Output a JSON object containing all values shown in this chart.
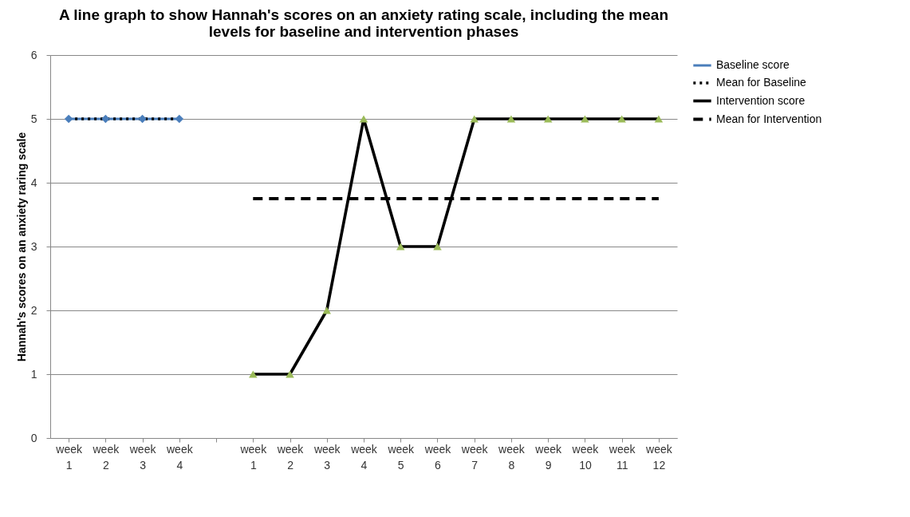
{
  "chart_data": {
    "type": "line",
    "title": "A line graph to show Hannah's scores on an anxiety rating scale, including the mean levels for baseline and intervention phases",
    "ylabel": "Hannah's scores on an anxiety raring scale",
    "categories": [
      "week 1",
      "week 2",
      "week 3",
      "week 4",
      null,
      "week 1",
      "week 2",
      "week 3",
      "week 4",
      "week 5",
      "week 6",
      "week 7",
      "week 8",
      "week 9",
      "week 10",
      "week 11",
      "week 12"
    ],
    "ylim": [
      0,
      6
    ],
    "yticks": [
      0,
      1,
      2,
      3,
      4,
      5,
      6
    ],
    "grid": "y",
    "legend": "right",
    "series": [
      {
        "name": "Baseline score",
        "color": "#4a7ebb",
        "marker": "diamond",
        "line_style": "solid",
        "values": [
          5,
          5,
          5,
          5,
          null,
          null,
          null,
          null,
          null,
          null,
          null,
          null,
          null,
          null,
          null,
          null,
          null
        ]
      },
      {
        "name": "Mean for Baseline",
        "color": "#000000",
        "marker": "none",
        "line_style": "dotted",
        "values": [
          5,
          5,
          5,
          5,
          null,
          null,
          null,
          null,
          null,
          null,
          null,
          null,
          null,
          null,
          null,
          null,
          null
        ]
      },
      {
        "name": "Intervention score",
        "color": "#000000",
        "colors": [
          null,
          null,
          null,
          null,
          null,
          "#9bbb59",
          "#9bbb59",
          "#9bbb59",
          "#9bbb59",
          "#9bbb59",
          "#9bbb59",
          "#9bbb59",
          "#9bbb59",
          "#9bbb59",
          "#9bbb59",
          "#9bbb59",
          "#9bbb59"
        ],
        "marker": "triangle",
        "line_style": "solid",
        "values": [
          null,
          null,
          null,
          null,
          null,
          1,
          1,
          2,
          5,
          3,
          3,
          5,
          5,
          5,
          5,
          5,
          5
        ]
      },
      {
        "name": "Mean for Intervention",
        "color": "#000000",
        "marker": "none",
        "line_style": "dashed",
        "values": [
          null,
          null,
          null,
          null,
          null,
          3.75,
          3.75,
          3.75,
          3.75,
          3.75,
          3.75,
          3.75,
          3.75,
          3.75,
          3.75,
          3.75,
          3.75
        ]
      }
    ]
  }
}
